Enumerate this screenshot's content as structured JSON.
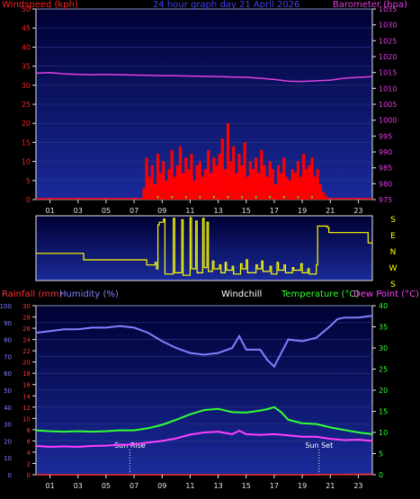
{
  "colors": {
    "background": "#000000",
    "plot_bg_top": "#000033",
    "plot_bg_bottom": "#1a2a9a",
    "axis": "#e6e6e6",
    "wind_label": "#ff2020",
    "wind": "#ff0000",
    "gust_line": "#ff0000",
    "gust_green": "#33ff33",
    "title": "#4040ff",
    "pressure": "#e040e0",
    "direction": "#ffff00",
    "rain": "#ff3030",
    "humidity": "#8080ff",
    "windchill": "#ffffff",
    "temperature": "#33ff33",
    "dewpoint": "#ff40ff",
    "sun_marker": "#ffffff"
  },
  "x_ticks": [
    "01",
    "03",
    "05",
    "07",
    "09",
    "11",
    "13",
    "15",
    "17",
    "19",
    "21",
    "23"
  ],
  "chart_data": [
    {
      "type": "bar",
      "title": "24 hour graph day 21 April 2026",
      "left_label": "Windspeed (kph)",
      "right_label": "Barometer (hpa)",
      "ylim_left": [
        0,
        50
      ],
      "yticks_left": [
        0,
        5,
        10,
        15,
        20,
        25,
        30,
        35,
        40,
        45,
        50
      ],
      "ylim_right": [
        975,
        1035
      ],
      "yticks_right": [
        975,
        980,
        985,
        990,
        995,
        1000,
        1005,
        1010,
        1015,
        1020,
        1025,
        1030,
        1035
      ],
      "xlim_hours": [
        0,
        24
      ],
      "series": [
        {
          "name": "Windspeed",
          "axis": "left",
          "x": [
            7.7,
            7.9,
            8.1,
            8.3,
            8.5,
            8.7,
            8.9,
            9.1,
            9.3,
            9.5,
            9.7,
            9.9,
            10.1,
            10.3,
            10.5,
            10.7,
            10.9,
            11.1,
            11.3,
            11.5,
            11.7,
            11.9,
            12.1,
            12.3,
            12.5,
            12.7,
            12.9,
            13.1,
            13.3,
            13.5,
            13.7,
            13.9,
            14.1,
            14.3,
            14.5,
            14.7,
            14.9,
            15.1,
            15.3,
            15.5,
            15.7,
            15.9,
            16.1,
            16.3,
            16.5,
            16.7,
            16.9,
            17.1,
            17.3,
            17.5,
            17.7,
            17.9,
            18.1,
            18.3,
            18.5,
            18.7,
            18.9,
            19.1,
            19.3,
            19.5,
            19.7,
            19.9,
            20.1,
            20.3,
            20.5,
            20.7
          ],
          "values": [
            3,
            11,
            6,
            9,
            4,
            12,
            7,
            10,
            5,
            8,
            13,
            6,
            9,
            14,
            7,
            11,
            8,
            12,
            5,
            9,
            10,
            6,
            8,
            13,
            7,
            11,
            9,
            12,
            16,
            8,
            20,
            10,
            14,
            7,
            12,
            9,
            15,
            6,
            10,
            8,
            11,
            7,
            13,
            9,
            6,
            10,
            8,
            4,
            9,
            7,
            11,
            6,
            5,
            8,
            7,
            10,
            6,
            12,
            8,
            9,
            11,
            6,
            8,
            4,
            2,
            1
          ]
        },
        {
          "name": "Barometer",
          "axis": "right",
          "x": [
            0,
            1,
            2,
            3,
            4,
            5,
            6,
            7,
            8,
            9,
            10,
            11,
            12,
            13,
            14,
            15,
            16,
            17,
            18,
            19,
            20,
            21,
            22,
            23,
            24
          ],
          "values": [
            1014.8,
            1015.0,
            1014.6,
            1014.4,
            1014.3,
            1014.4,
            1014.3,
            1014.2,
            1014.1,
            1014.0,
            1014.0,
            1013.9,
            1013.8,
            1013.7,
            1013.6,
            1013.5,
            1013.2,
            1012.8,
            1012.3,
            1012.2,
            1012.4,
            1012.6,
            1013.2,
            1013.5,
            1013.7
          ]
        }
      ]
    },
    {
      "type": "line",
      "right_labels": [
        "S",
        "E",
        "N",
        "W",
        "S"
      ],
      "xlim_hours": [
        0,
        24
      ],
      "series": [
        {
          "name": "Wind direction",
          "x": [
            0,
            3.2,
            3.4,
            7.8,
            7.9,
            8.5,
            8.6,
            8.7,
            8.8,
            9.1,
            9.2,
            9.8,
            9.9,
            10.4,
            10.5,
            11.0,
            11.1,
            11.4,
            11.5,
            11.9,
            12.0,
            12.2,
            12.3,
            12.6,
            12.7,
            13.1,
            13.2,
            13.5,
            13.6,
            14.0,
            14.1,
            14.6,
            14.7,
            15.0,
            15.1,
            15.7,
            15.8,
            16.1,
            16.2,
            16.7,
            16.8,
            17.2,
            17.3,
            17.7,
            17.8,
            18.3,
            18.4,
            18.9,
            19.0,
            19.4,
            19.5,
            20.0,
            20.1,
            20.8,
            20.9,
            23.6,
            23.7,
            24.0
          ],
          "values": [
            0.42,
            0.42,
            0.32,
            0.32,
            0.24,
            0.28,
            0.18,
            0.86,
            0.9,
            0.95,
            0.1,
            0.96,
            0.12,
            0.94,
            0.08,
            0.97,
            0.18,
            0.92,
            0.12,
            0.96,
            0.2,
            0.9,
            0.14,
            0.3,
            0.18,
            0.24,
            0.12,
            0.28,
            0.16,
            0.22,
            0.1,
            0.26,
            0.18,
            0.32,
            0.12,
            0.24,
            0.18,
            0.3,
            0.14,
            0.22,
            0.1,
            0.28,
            0.16,
            0.24,
            0.12,
            0.2,
            0.16,
            0.26,
            0.12,
            0.18,
            0.1,
            0.24,
            0.84,
            0.82,
            0.74,
            0.74,
            0.58,
            0.56
          ]
        }
      ]
    },
    {
      "type": "line",
      "labels": {
        "rainfall": "Rainfall (mm)",
        "humidity": "Humidity (%)",
        "windchill": "Windchill",
        "temperature": "Temperature (°C)",
        "dewpoint": "Dew Point (°C)"
      },
      "ylim_humidity": [
        0,
        100
      ],
      "yticks_humidity": [
        0,
        10,
        20,
        30,
        40,
        50,
        60,
        70,
        80,
        90,
        100
      ],
      "ylim_rain": [
        0,
        30
      ],
      "yticks_rain": [
        0,
        2,
        4,
        6,
        8,
        10,
        12,
        14,
        16,
        18,
        20,
        22,
        24,
        26,
        28,
        30
      ],
      "ylim_temp": [
        0,
        40
      ],
      "yticks_temp": [
        0,
        5,
        10,
        15,
        20,
        25,
        30,
        35,
        40
      ],
      "xlim_hours": [
        0,
        24
      ],
      "markers": [
        {
          "label": "Sun Rise",
          "hour": 6.7
        },
        {
          "label": "Sun Set",
          "hour": 20.2
        }
      ],
      "series": [
        {
          "name": "Humidity",
          "axis": "humidity",
          "x": [
            0,
            1,
            2,
            3,
            4,
            5,
            6,
            7,
            8,
            9,
            10,
            11,
            12,
            13,
            14,
            14.5,
            15,
            16,
            16.5,
            17,
            17.5,
            18,
            19,
            20,
            21,
            21.5,
            22,
            23,
            24
          ],
          "values": [
            84,
            85,
            86,
            86,
            87,
            87,
            88,
            87,
            84,
            79,
            75,
            72,
            71,
            72,
            75,
            82,
            74,
            74,
            68,
            64,
            72,
            80,
            79,
            81,
            88,
            92,
            93,
            93,
            94
          ]
        },
        {
          "name": "Temperature",
          "axis": "temp",
          "x": [
            0,
            1,
            2,
            3,
            4,
            5,
            6,
            7,
            8,
            9,
            10,
            11,
            12,
            13,
            14,
            15,
            16,
            16.5,
            17,
            17.5,
            18,
            19,
            20,
            21,
            22,
            23,
            24
          ],
          "values": [
            10.5,
            10.3,
            10.2,
            10.3,
            10.2,
            10.3,
            10.5,
            10.5,
            11.0,
            11.8,
            13.0,
            14.3,
            15.3,
            15.6,
            14.8,
            14.7,
            15.2,
            15.5,
            16.0,
            14.8,
            13.0,
            12.2,
            12.0,
            11.2,
            10.6,
            10.0,
            9.6
          ]
        },
        {
          "name": "Dew Point",
          "axis": "temp",
          "x": [
            0,
            1,
            2,
            3,
            4,
            5,
            6,
            7,
            8,
            9,
            10,
            11,
            12,
            13,
            14,
            14.5,
            15,
            16,
            17,
            18,
            19,
            20,
            21,
            22,
            23,
            24
          ],
          "values": [
            6.8,
            6.6,
            6.7,
            6.6,
            6.8,
            6.9,
            7.1,
            7.2,
            7.6,
            8.0,
            8.6,
            9.5,
            10.0,
            10.2,
            9.6,
            10.4,
            9.6,
            9.4,
            9.6,
            9.3,
            9.0,
            9.0,
            8.5,
            8.2,
            8.3,
            8.0
          ]
        },
        {
          "name": "Rainfall",
          "axis": "rain",
          "x": [
            0,
            20.0,
            24
          ],
          "values": [
            0,
            0,
            0.1
          ]
        }
      ]
    }
  ]
}
